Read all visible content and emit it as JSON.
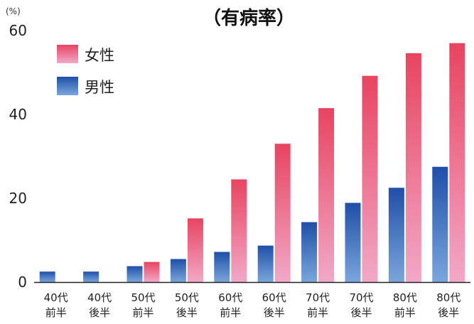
{
  "chart_data": {
    "type": "bar",
    "title": "（有病率）",
    "ylabel": "(%)",
    "ylim": [
      0,
      60
    ],
    "yticks": [
      0,
      20,
      40,
      60
    ],
    "grid": false,
    "legend_position": "top-left",
    "categories": [
      [
        "40代",
        "前半"
      ],
      [
        "40代",
        "後半"
      ],
      [
        "50代",
        "前半"
      ],
      [
        "50代",
        "後半"
      ],
      [
        "60代",
        "前半"
      ],
      [
        "60代",
        "後半"
      ],
      [
        "70代",
        "前半"
      ],
      [
        "70代",
        "後半"
      ],
      [
        "80代",
        "前半"
      ],
      [
        "80代",
        "後半"
      ]
    ],
    "series": [
      {
        "name": "男性",
        "color_top": "#1f4fa8",
        "color_bottom": "#7aa6dc",
        "values": [
          2.5,
          2.5,
          3.8,
          5.5,
          7.2,
          8.7,
          14.3,
          18.9,
          22.5,
          27.5
        ]
      },
      {
        "name": "女性",
        "color_top": "#e8445f",
        "color_bottom": "#f2a8c8",
        "values": [
          0,
          0,
          4.8,
          15.2,
          24.5,
          33.0,
          41.5,
          49.2,
          54.6,
          57.0
        ]
      }
    ]
  }
}
